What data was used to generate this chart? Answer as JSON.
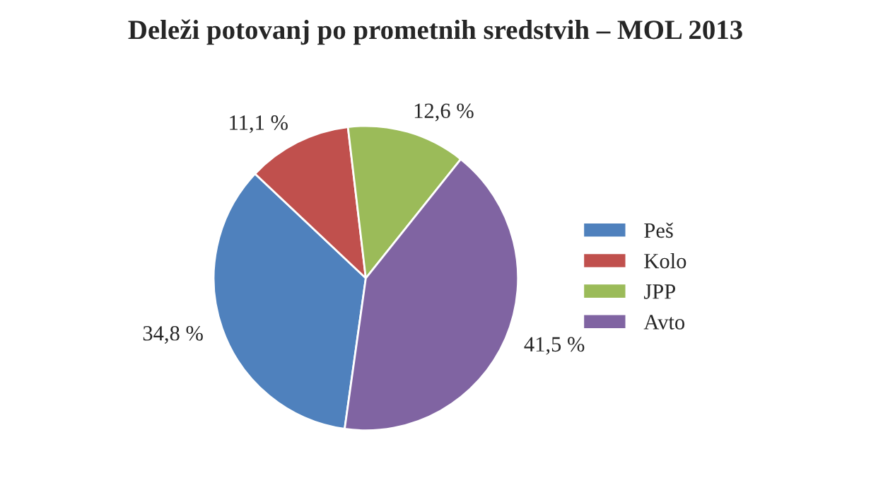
{
  "chart_data": {
    "type": "pie",
    "title": "Deleži potovanj po prometnih sredstvih – MOL 2013",
    "categories": [
      "Peš",
      "Kolo",
      "JPP",
      "Avto"
    ],
    "values": [
      34.8,
      11.1,
      12.6,
      41.5
    ],
    "value_labels": [
      "34,8 %",
      "11,1 %",
      "12,6 %",
      "41,5 %"
    ],
    "colors": [
      "#4f81bd",
      "#c0504d",
      "#9bbb59",
      "#8064a2"
    ],
    "legend": "right"
  }
}
